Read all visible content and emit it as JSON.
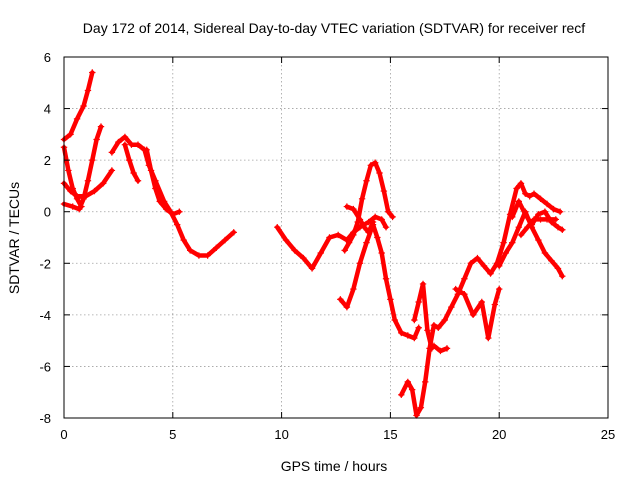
{
  "chart_data": {
    "type": "scatter",
    "title": "Day 172 of 2014, Sidereal Day-to-day VTEC variation (SDTVAR) for receiver recf",
    "xlabel": "GPS time / hours",
    "ylabel": "SDTVAR / TECUs",
    "xlim": [
      0,
      25
    ],
    "ylim": [
      -8,
      6
    ],
    "xticks": [
      0,
      5,
      10,
      15,
      20,
      25
    ],
    "yticks": [
      -8,
      -6,
      -4,
      -2,
      0,
      2,
      4,
      6
    ],
    "grid": true,
    "marker": "+",
    "color": "#ff0000",
    "series": [
      {
        "name": "track-1",
        "x": [
          0.0,
          0.3,
          0.6,
          0.9,
          1.1,
          1.3
        ],
        "y": [
          2.8,
          3.0,
          3.6,
          4.1,
          4.7,
          5.4
        ]
      },
      {
        "name": "track-2",
        "x": [
          0.0,
          0.2,
          0.4,
          0.6,
          0.8
        ],
        "y": [
          2.5,
          1.6,
          0.9,
          0.5,
          0.2
        ]
      },
      {
        "name": "track-3",
        "x": [
          0.0,
          0.4,
          0.7,
          0.9,
          1.1,
          1.3,
          1.5,
          1.7
        ],
        "y": [
          0.3,
          0.2,
          0.1,
          0.5,
          1.2,
          2.0,
          2.8,
          3.3
        ]
      },
      {
        "name": "track-4",
        "x": [
          0.0,
          0.3,
          0.6,
          1.0,
          1.4,
          1.8,
          2.2
        ],
        "y": [
          1.1,
          0.8,
          0.6,
          0.6,
          0.8,
          1.1,
          1.6
        ]
      },
      {
        "name": "track-5",
        "x": [
          2.2,
          2.5,
          2.8,
          3.1,
          3.4,
          3.7,
          3.9,
          4.2,
          4.6,
          4.9,
          5.2,
          5.5,
          5.8,
          6.2,
          6.6,
          7.0,
          7.4,
          7.8
        ],
        "y": [
          2.3,
          2.7,
          2.9,
          2.6,
          2.6,
          2.4,
          1.8,
          1.2,
          0.4,
          0.0,
          -0.5,
          -1.1,
          -1.5,
          -1.7,
          -1.7,
          -1.4,
          -1.1,
          -0.8
        ]
      },
      {
        "name": "track-6",
        "x": [
          2.8,
          3.0,
          3.2,
          3.4
        ],
        "y": [
          2.6,
          2.0,
          1.5,
          1.2
        ]
      },
      {
        "name": "track-7",
        "x": [
          3.8,
          4.0,
          4.2,
          4.4,
          4.7,
          5.0,
          5.3
        ],
        "y": [
          2.4,
          1.6,
          0.9,
          0.4,
          0.1,
          -0.1,
          0.0
        ]
      },
      {
        "name": "track-8",
        "x": [
          9.8,
          10.2,
          10.6,
          11.0,
          11.4,
          11.8,
          12.2,
          12.6,
          13.0,
          13.3,
          13.6,
          14.0,
          14.3,
          14.6,
          14.8
        ],
        "y": [
          -0.6,
          -1.1,
          -1.5,
          -1.8,
          -2.2,
          -1.6,
          -1.0,
          -0.9,
          -1.1,
          -0.8,
          -0.6,
          -0.4,
          -0.2,
          -0.3,
          -0.6
        ]
      },
      {
        "name": "track-9",
        "x": [
          12.7,
          13.0,
          13.3,
          13.6,
          13.9,
          14.2,
          14.4,
          14.6,
          14.8,
          15.0,
          15.2,
          15.5,
          15.8,
          16.1,
          16.3
        ],
        "y": [
          -3.4,
          -3.7,
          -3.0,
          -2.0,
          -1.2,
          -0.5,
          -1.0,
          -1.6,
          -2.6,
          -3.4,
          -4.2,
          -4.7,
          -4.8,
          -4.9,
          -4.5
        ]
      },
      {
        "name": "track-10",
        "x": [
          12.9,
          13.1,
          13.3,
          13.5,
          13.7,
          13.9,
          14.1,
          14.3,
          14.5,
          14.7,
          14.9,
          15.1
        ],
        "y": [
          -1.5,
          -1.2,
          -0.9,
          -0.4,
          0.5,
          1.2,
          1.8,
          1.9,
          1.5,
          0.8,
          0.0,
          -0.2
        ]
      },
      {
        "name": "track-11",
        "x": [
          13.0,
          13.3,
          13.6,
          13.8,
          14.0,
          14.2
        ],
        "y": [
          0.2,
          0.1,
          -0.3,
          -0.6,
          -0.8,
          -0.4
        ]
      },
      {
        "name": "track-12",
        "x": [
          15.5,
          15.8,
          16.0,
          16.2,
          16.4,
          16.6,
          16.8,
          17.0,
          17.2,
          17.5,
          17.8,
          18.1,
          18.4,
          18.7,
          19.0,
          19.3,
          19.6,
          19.9,
          20.2,
          20.5,
          20.8,
          21.0,
          21.2,
          21.4,
          21.6,
          21.9,
          22.2,
          22.5,
          22.8
        ],
        "y": [
          -7.1,
          -6.6,
          -6.9,
          -7.9,
          -7.6,
          -6.6,
          -5.3,
          -4.4,
          -4.5,
          -4.2,
          -3.7,
          -3.2,
          -2.6,
          -2.0,
          -1.8,
          -2.1,
          -2.4,
          -2.0,
          -1.2,
          -0.1,
          0.9,
          1.1,
          0.7,
          0.6,
          0.7,
          0.5,
          0.3,
          0.1,
          0.0
        ]
      },
      {
        "name": "track-13",
        "x": [
          16.1,
          16.3,
          16.5,
          16.7,
          16.9
        ],
        "y": [
          -4.2,
          -3.5,
          -2.8,
          -4.6,
          -5.3
        ]
      },
      {
        "name": "track-14",
        "x": [
          17.0,
          17.3,
          17.6
        ],
        "y": [
          -5.2,
          -5.4,
          -5.3
        ]
      },
      {
        "name": "track-15",
        "x": [
          18.0,
          18.4,
          18.8,
          19.2,
          19.5,
          19.8,
          20.0
        ],
        "y": [
          -3.0,
          -3.2,
          -4.0,
          -3.5,
          -4.9,
          -3.6,
          -3.0
        ]
      },
      {
        "name": "track-16",
        "x": [
          20.0,
          20.3,
          20.6,
          20.9,
          21.2,
          21.5,
          21.8,
          22.1,
          22.4,
          22.7,
          22.9
        ],
        "y": [
          -2.1,
          -1.6,
          -1.2,
          -0.6,
          0.0,
          -0.6,
          -1.1,
          -1.6,
          -1.9,
          -2.2,
          -2.5
        ]
      },
      {
        "name": "track-17",
        "x": [
          20.6,
          20.9,
          21.2,
          21.5,
          21.8,
          22.1,
          22.4,
          22.7,
          22.9
        ],
        "y": [
          -0.2,
          0.4,
          -0.1,
          -0.5,
          -0.1,
          0.0,
          -0.4,
          -0.6,
          -0.7
        ]
      },
      {
        "name": "track-18",
        "x": [
          21.0,
          21.3,
          21.6,
          21.9,
          22.2,
          22.6
        ],
        "y": [
          -0.9,
          -0.6,
          -0.3,
          -0.3,
          -0.3,
          -0.3
        ]
      }
    ]
  }
}
